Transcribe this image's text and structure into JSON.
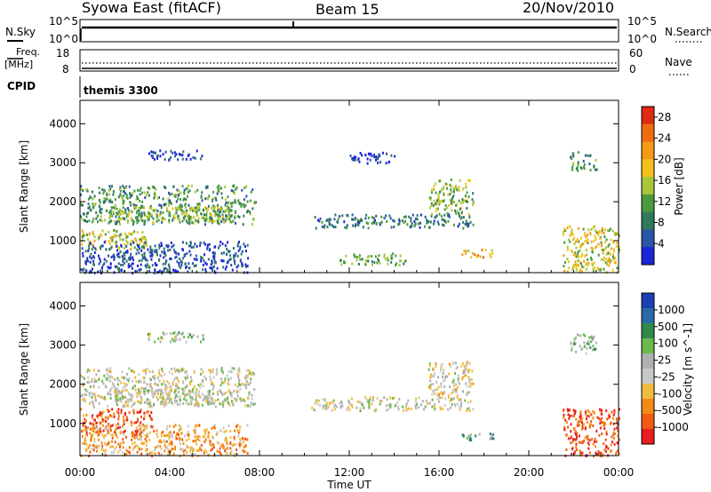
{
  "header": {
    "station": "Syowa East (fitACF)",
    "beam": "Beam 15",
    "date": "20/Nov/2010"
  },
  "noise_panel": {
    "left_label": "N.Sky",
    "right_label": "N.Search",
    "left_ticks": [
      "10^5",
      "10^0"
    ],
    "right_ticks": [
      "10^5",
      "10^0"
    ]
  },
  "freq_panel": {
    "left_label_top": "Freq.",
    "left_label_bottom": "[MHz]",
    "right_label": "Nave",
    "left_ticks": [
      "18",
      "8"
    ],
    "right_ticks": [
      "60",
      "0"
    ]
  },
  "cpid": {
    "label": "CPID",
    "value": "themis 3300"
  },
  "colors": {
    "power": [
      "#1c24d8",
      "#2b55a8",
      "#2f7a5c",
      "#4a9a3e",
      "#a8c83a",
      "#f2c21a",
      "#f59a14",
      "#f06b10",
      "#e02a12"
    ],
    "velocity": [
      "#e81d1d",
      "#f05a12",
      "#f38a15",
      "#f0bc3c",
      "#c8c8c8",
      "#b0b0b0",
      "#6ab94a",
      "#2f8a4a",
      "#2a6aa8",
      "#1b3fb5"
    ]
  },
  "chart_data": [
    {
      "type": "heatmap",
      "name": "Power",
      "title": "",
      "xlabel": "Time UT",
      "ylabel": "Slant Range [km]",
      "x_tick_labels": [
        "00:00",
        "04:00",
        "08:00",
        "12:00",
        "16:00",
        "20:00",
        "00:00"
      ],
      "y_tick_labels": [
        "1000",
        "2000",
        "3000",
        "4000"
      ],
      "xlim_hours": [
        0,
        24
      ],
      "ylim_km": [
        180,
        4600
      ],
      "colorbar_label": "Power [dB]",
      "colorbar_ticks": [
        "4",
        "8",
        "12",
        "16",
        "20",
        "24",
        "28"
      ],
      "colorbar_range": [
        0,
        30
      ],
      "regions": [
        {
          "t": [
            0.0,
            7.8
          ],
          "r": [
            1450,
            2450
          ],
          "level": 0.35
        },
        {
          "t": [
            0.0,
            3.0
          ],
          "r": [
            800,
            1300
          ],
          "level": 0.55
        },
        {
          "t": [
            1.5,
            6.8
          ],
          "r": [
            1500,
            1900
          ],
          "level": 0.45
        },
        {
          "t": [
            0.0,
            7.5
          ],
          "r": [
            200,
            1000
          ],
          "level": 0.15
        },
        {
          "t": [
            3.0,
            5.5
          ],
          "r": [
            3100,
            3350
          ],
          "level": 0.1
        },
        {
          "t": [
            10.3,
            17.5
          ],
          "r": [
            1350,
            1700
          ],
          "level": 0.25
        },
        {
          "t": [
            15.5,
            17.5
          ],
          "r": [
            1700,
            2600
          ],
          "level": 0.45
        },
        {
          "t": [
            12.0,
            14.0
          ],
          "r": [
            3000,
            3300
          ],
          "level": 0.1
        },
        {
          "t": [
            17.0,
            18.5
          ],
          "r": [
            600,
            800
          ],
          "level": 0.65
        },
        {
          "t": [
            21.5,
            24.0
          ],
          "r": [
            200,
            1400
          ],
          "level": 0.55
        },
        {
          "t": [
            21.8,
            23.0
          ],
          "r": [
            2800,
            3300
          ],
          "level": 0.3
        },
        {
          "t": [
            11.5,
            14.5
          ],
          "r": [
            400,
            700
          ],
          "level": 0.4
        }
      ]
    },
    {
      "type": "heatmap",
      "name": "Velocity",
      "title": "",
      "xlabel": "Time UT",
      "ylabel": "Slant Range [km]",
      "x_tick_labels": [
        "00:00",
        "04:00",
        "08:00",
        "12:00",
        "16:00",
        "20:00",
        "00:00"
      ],
      "y_tick_labels": [
        "1000",
        "2000",
        "3000",
        "4000"
      ],
      "xlim_hours": [
        0,
        24
      ],
      "ylim_km": [
        180,
        4600
      ],
      "colorbar_label": "Velocity [m s^-1]",
      "colorbar_ticks": [
        "1000",
        "500",
        "100",
        "25",
        "-25",
        "-100",
        "-500",
        "-1000"
      ],
      "regions": [
        {
          "t": [
            0.0,
            7.8
          ],
          "r": [
            1450,
            2450
          ],
          "level": 0.5
        },
        {
          "t": [
            0.0,
            3.2
          ],
          "r": [
            700,
            1400
          ],
          "level": 0.15
        },
        {
          "t": [
            1.5,
            6.8
          ],
          "r": [
            1500,
            1900
          ],
          "level": 0.5
        },
        {
          "t": [
            0.0,
            7.5
          ],
          "r": [
            200,
            1000
          ],
          "level": 0.3
        },
        {
          "t": [
            3.0,
            5.5
          ],
          "r": [
            3100,
            3350
          ],
          "level": 0.55
        },
        {
          "t": [
            10.3,
            17.5
          ],
          "r": [
            1350,
            1700
          ],
          "level": 0.5
        },
        {
          "t": [
            15.5,
            17.5
          ],
          "r": [
            1700,
            2600
          ],
          "level": 0.45
        },
        {
          "t": [
            17.0,
            18.5
          ],
          "r": [
            600,
            800
          ],
          "level": 0.7
        },
        {
          "t": [
            21.5,
            24.0
          ],
          "r": [
            200,
            1400
          ],
          "level": 0.12
        },
        {
          "t": [
            21.8,
            23.0
          ],
          "r": [
            2800,
            3300
          ],
          "level": 0.6
        }
      ]
    }
  ]
}
